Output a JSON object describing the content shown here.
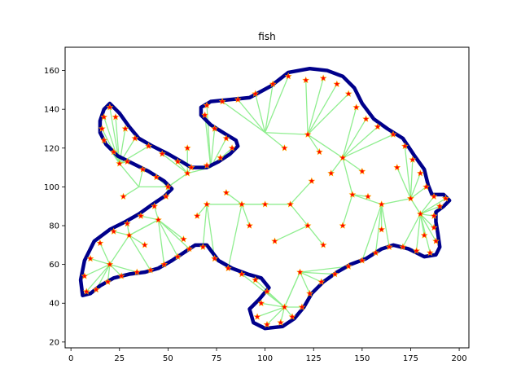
{
  "chart_data": {
    "type": "line",
    "title": "fish",
    "xlabel": "",
    "ylabel": "",
    "xlim": [
      -3,
      205
    ],
    "ylim": [
      17,
      172
    ],
    "xticks": [
      0,
      25,
      50,
      75,
      100,
      125,
      150,
      175,
      200
    ],
    "yticks": [
      20,
      40,
      60,
      80,
      100,
      120,
      140,
      160
    ],
    "grid": false,
    "colors": {
      "outline": "#00008b",
      "spokes": "#90ee90",
      "markers": "#ff0000",
      "marker_edge": "#ffa500"
    },
    "outline": [
      [
        20,
        143
      ],
      [
        25,
        138
      ],
      [
        30,
        131
      ],
      [
        35,
        125
      ],
      [
        42,
        121
      ],
      [
        50,
        117
      ],
      [
        57,
        113
      ],
      [
        62,
        110
      ],
      [
        66,
        110
      ],
      [
        70,
        110
      ],
      [
        76,
        113
      ],
      [
        82,
        117
      ],
      [
        86,
        121
      ],
      [
        85,
        124
      ],
      [
        80,
        127
      ],
      [
        72,
        132
      ],
      [
        67,
        137
      ],
      [
        67,
        141
      ],
      [
        72,
        144
      ],
      [
        82,
        145
      ],
      [
        92,
        146
      ],
      [
        103,
        152
      ],
      [
        112,
        159
      ],
      [
        123,
        161
      ],
      [
        132,
        160
      ],
      [
        140,
        157
      ],
      [
        146,
        151
      ],
      [
        150,
        143
      ],
      [
        156,
        135
      ],
      [
        163,
        130
      ],
      [
        171,
        125
      ],
      [
        177,
        116
      ],
      [
        182,
        109
      ],
      [
        184,
        101
      ],
      [
        186,
        96
      ],
      [
        192,
        96
      ],
      [
        195,
        93
      ],
      [
        192,
        90
      ],
      [
        188,
        87
      ],
      [
        188,
        82
      ],
      [
        189,
        76
      ],
      [
        190,
        69
      ],
      [
        188,
        65
      ],
      [
        182,
        64
      ],
      [
        174,
        68
      ],
      [
        166,
        70
      ],
      [
        160,
        68
      ],
      [
        152,
        63
      ],
      [
        144,
        60
      ],
      [
        137,
        56
      ],
      [
        130,
        51
      ],
      [
        124,
        45
      ],
      [
        120,
        38
      ],
      [
        115,
        32
      ],
      [
        109,
        28
      ],
      [
        100,
        27
      ],
      [
        94,
        30
      ],
      [
        92,
        37
      ],
      [
        97,
        42
      ],
      [
        102,
        48
      ],
      [
        98,
        53
      ],
      [
        91,
        55
      ],
      [
        83,
        58
      ],
      [
        76,
        62
      ],
      [
        70,
        70
      ],
      [
        64,
        70
      ],
      [
        58,
        66
      ],
      [
        52,
        62
      ],
      [
        45,
        58
      ],
      [
        38,
        56
      ],
      [
        30,
        55
      ],
      [
        22,
        53
      ],
      [
        15,
        49
      ],
      [
        10,
        45
      ],
      [
        6,
        44
      ],
      [
        5,
        52
      ],
      [
        7,
        62
      ],
      [
        12,
        72
      ],
      [
        20,
        78
      ],
      [
        28,
        82
      ],
      [
        35,
        86
      ],
      [
        42,
        91
      ],
      [
        48,
        95
      ],
      [
        52,
        99
      ],
      [
        48,
        103
      ],
      [
        40,
        108
      ],
      [
        32,
        112
      ],
      [
        24,
        116
      ],
      [
        18,
        122
      ],
      [
        15,
        128
      ],
      [
        15,
        134
      ],
      [
        17,
        140
      ],
      [
        20,
        143
      ]
    ],
    "centers": [
      [
        122,
        127
      ],
      [
        124,
        103
      ],
      [
        145,
        96
      ],
      [
        160,
        91
      ],
      [
        175,
        94
      ],
      [
        180,
        86
      ],
      [
        60,
        107
      ],
      [
        72,
        110
      ],
      [
        50,
        100
      ],
      [
        35,
        100
      ],
      [
        25,
        112
      ],
      [
        45,
        83
      ],
      [
        30,
        75
      ],
      [
        20,
        60
      ],
      [
        100,
        91
      ],
      [
        113,
        91
      ],
      [
        122,
        80
      ],
      [
        118,
        56
      ],
      [
        110,
        38
      ],
      [
        88,
        91
      ],
      [
        70,
        91
      ],
      [
        100,
        128
      ],
      [
        140,
        115
      ]
    ],
    "markers": [
      [
        20,
        141
      ],
      [
        23,
        136
      ],
      [
        28,
        130
      ],
      [
        33,
        125
      ],
      [
        40,
        121
      ],
      [
        47,
        117
      ],
      [
        55,
        113
      ],
      [
        62,
        110
      ],
      [
        70,
        111
      ],
      [
        77,
        115
      ],
      [
        83,
        120
      ],
      [
        80,
        125
      ],
      [
        74,
        130
      ],
      [
        69,
        137
      ],
      [
        70,
        142
      ],
      [
        78,
        144
      ],
      [
        86,
        145
      ],
      [
        95,
        148
      ],
      [
        104,
        153
      ],
      [
        112,
        157
      ],
      [
        121,
        155
      ],
      [
        130,
        156
      ],
      [
        137,
        153
      ],
      [
        143,
        148
      ],
      [
        147,
        141
      ],
      [
        152,
        135
      ],
      [
        158,
        131
      ],
      [
        166,
        127
      ],
      [
        172,
        121
      ],
      [
        176,
        114
      ],
      [
        180,
        107
      ],
      [
        183,
        100
      ],
      [
        187,
        95
      ],
      [
        193,
        94
      ],
      [
        190,
        90
      ],
      [
        187,
        85
      ],
      [
        187,
        79
      ],
      [
        188,
        72
      ],
      [
        185,
        66
      ],
      [
        178,
        67
      ],
      [
        171,
        69
      ],
      [
        164,
        69
      ],
      [
        157,
        66
      ],
      [
        150,
        62
      ],
      [
        143,
        59
      ],
      [
        136,
        55
      ],
      [
        129,
        51
      ],
      [
        123,
        45
      ],
      [
        119,
        38
      ],
      [
        114,
        33
      ],
      [
        108,
        30
      ],
      [
        101,
        29
      ],
      [
        96,
        33
      ],
      [
        98,
        40
      ],
      [
        101,
        46
      ],
      [
        95,
        52
      ],
      [
        88,
        55
      ],
      [
        81,
        58
      ],
      [
        74,
        63
      ],
      [
        68,
        69
      ],
      [
        61,
        68
      ],
      [
        55,
        64
      ],
      [
        48,
        60
      ],
      [
        41,
        57
      ],
      [
        34,
        56
      ],
      [
        26,
        54
      ],
      [
        19,
        51
      ],
      [
        13,
        47
      ],
      [
        8,
        46
      ],
      [
        7,
        54
      ],
      [
        10,
        63
      ],
      [
        15,
        71
      ],
      [
        22,
        77
      ],
      [
        29,
        81
      ],
      [
        36,
        85
      ],
      [
        43,
        90
      ],
      [
        49,
        95
      ],
      [
        50,
        100
      ],
      [
        44,
        105
      ],
      [
        37,
        109
      ],
      [
        29,
        113
      ],
      [
        22,
        118
      ],
      [
        17,
        124
      ],
      [
        16,
        130
      ],
      [
        17,
        136
      ],
      [
        122,
        127
      ],
      [
        124,
        103
      ],
      [
        145,
        96
      ],
      [
        160,
        91
      ],
      [
        100,
        91
      ],
      [
        113,
        91
      ],
      [
        122,
        80
      ],
      [
        118,
        56
      ],
      [
        110,
        38
      ],
      [
        88,
        91
      ],
      [
        70,
        91
      ],
      [
        60,
        107
      ],
      [
        50,
        100
      ],
      [
        45,
        83
      ],
      [
        30,
        75
      ],
      [
        20,
        60
      ],
      [
        25,
        112
      ],
      [
        140,
        115
      ],
      [
        175,
        94
      ],
      [
        180,
        86
      ],
      [
        134,
        107
      ],
      [
        153,
        95
      ],
      [
        140,
        80
      ],
      [
        130,
        70
      ],
      [
        105,
        72
      ],
      [
        92,
        80
      ],
      [
        80,
        97
      ],
      [
        65,
        85
      ],
      [
        38,
        70
      ],
      [
        27,
        95
      ],
      [
        110,
        120
      ],
      [
        128,
        118
      ],
      [
        150,
        108
      ],
      [
        168,
        110
      ],
      [
        182,
        75
      ],
      [
        60,
        120
      ],
      [
        58,
        73
      ],
      [
        160,
        78
      ]
    ]
  }
}
